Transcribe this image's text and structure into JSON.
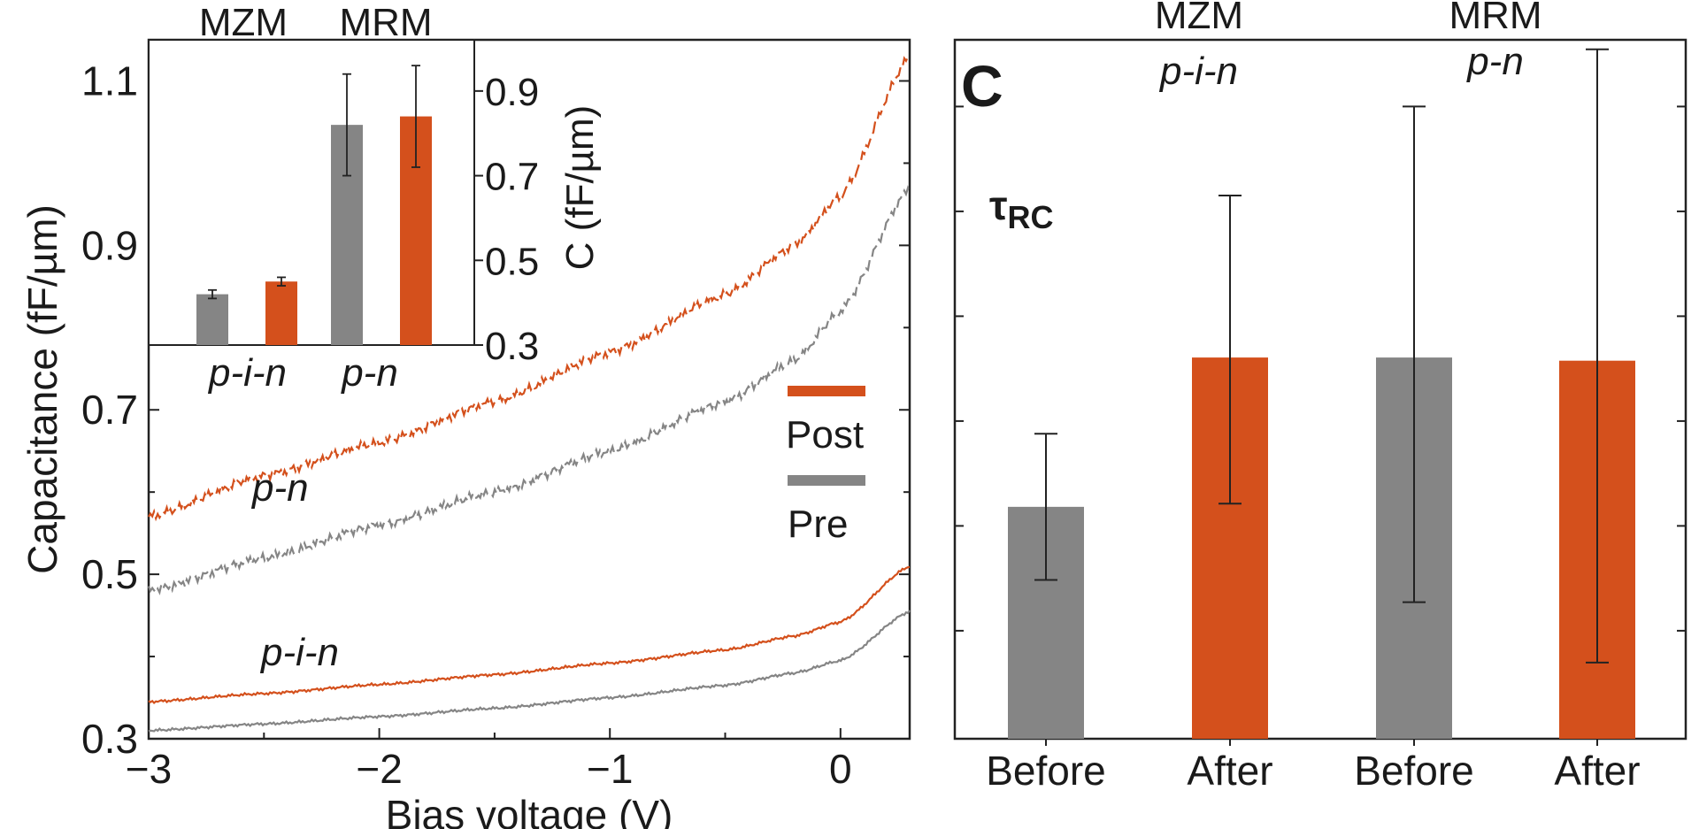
{
  "colors": {
    "post": "#d4501c",
    "pre": "#858585",
    "axis": "#222222",
    "text": "#1a1a1a"
  },
  "chart_data": [
    {
      "type": "line",
      "name": "capacitance-vs-bias",
      "xlabel": "Bias voltage (V)",
      "ylabel": "Capacitance (fF/µm)",
      "xlim": [
        -3,
        0.3
      ],
      "ylim": [
        0.3,
        1.15
      ],
      "xticks": [
        -3,
        -2,
        -1,
        0
      ],
      "xtick_labels": [
        "−3",
        "−2",
        "−1",
        "0"
      ],
      "yticks": [
        0.3,
        0.5,
        0.7,
        0.9,
        1.1
      ],
      "ytick_labels": [
        "0.3",
        "0.5",
        "0.7",
        "0.9",
        "1.1"
      ],
      "legend": {
        "position": "right-middle",
        "entries": [
          {
            "label": "Post",
            "color": "#d4501c"
          },
          {
            "label": "Pre",
            "color": "#858585"
          }
        ]
      },
      "annotations": {
        "pn": "p-n",
        "pin": "p-i-n"
      },
      "series": [
        {
          "name": "p-n Post",
          "style": "dashed",
          "color": "#d4501c",
          "x": [
            -3.0,
            -2.5,
            -2.0,
            -1.5,
            -1.0,
            -0.5,
            -0.2,
            0.0,
            0.3
          ],
          "y": [
            0.57,
            0.62,
            0.66,
            0.71,
            0.77,
            0.84,
            0.9,
            0.96,
            1.13
          ]
        },
        {
          "name": "p-n Pre",
          "style": "dashed",
          "color": "#858585",
          "x": [
            -3.0,
            -2.5,
            -2.0,
            -1.5,
            -1.0,
            -0.5,
            -0.2,
            0.0,
            0.3
          ],
          "y": [
            0.48,
            0.52,
            0.56,
            0.6,
            0.65,
            0.71,
            0.76,
            0.82,
            0.97
          ]
        },
        {
          "name": "p-i-n Post",
          "style": "solid",
          "color": "#d4501c",
          "x": [
            -3.0,
            -2.5,
            -2.0,
            -1.5,
            -1.0,
            -0.5,
            -0.2,
            0.0,
            0.3
          ],
          "y": [
            0.345,
            0.355,
            0.366,
            0.378,
            0.392,
            0.408,
            0.425,
            0.442,
            0.51
          ]
        },
        {
          "name": "p-i-n Pre",
          "style": "solid",
          "color": "#858585",
          "x": [
            -3.0,
            -2.5,
            -2.0,
            -1.5,
            -1.0,
            -0.5,
            -0.2,
            0.0,
            0.3
          ],
          "y": [
            0.31,
            0.318,
            0.327,
            0.337,
            0.35,
            0.365,
            0.38,
            0.395,
            0.455
          ]
        }
      ]
    },
    {
      "type": "bar",
      "name": "inset-capacitance",
      "ylabel": "C (fF/µm)",
      "ylim": [
        0.3,
        1.0
      ],
      "yticks": [
        0.3,
        0.5,
        0.7,
        0.9
      ],
      "ytick_labels": [
        "0.3",
        "0.5",
        "0.7",
        "0.9"
      ],
      "group_labels": [
        "p-i-n",
        "p-n"
      ],
      "group_titles": [
        "MZM",
        "MRM"
      ],
      "bars": [
        {
          "group": "p-i-n",
          "phase": "Pre",
          "value": 0.42,
          "err": 0.01,
          "color": "#858585"
        },
        {
          "group": "p-i-n",
          "phase": "Post",
          "value": 0.45,
          "err": 0.01,
          "color": "#d4501c"
        },
        {
          "group": "p-n",
          "phase": "Pre",
          "value": 0.82,
          "err": 0.12,
          "color": "#858585"
        },
        {
          "group": "p-n",
          "phase": "Post",
          "value": 0.84,
          "err": 0.12,
          "color": "#d4501c"
        }
      ]
    },
    {
      "type": "bar",
      "name": "tau-rc",
      "panel_label": "C",
      "annotation": "τ",
      "annotation_sub": "RC",
      "ylim": [
        0,
        11
      ],
      "categories": [
        "Before",
        "After",
        "Before",
        "After"
      ],
      "group_titles": [
        "MZM",
        "MRM"
      ],
      "group_subtitles": [
        "p-i-n",
        "p-n"
      ],
      "bars": [
        {
          "label": "Before",
          "value": 3.65,
          "err_low": 2.5,
          "err_high": 4.8,
          "color": "#858585"
        },
        {
          "label": "After",
          "value": 6.0,
          "err_low": 3.7,
          "err_high": 8.55,
          "color": "#d4501c"
        },
        {
          "label": "Before",
          "value": 6.0,
          "err_low": 2.15,
          "err_high": 9.95,
          "color": "#858585"
        },
        {
          "label": "After",
          "value": 5.95,
          "err_low": 1.2,
          "err_high": 10.85,
          "color": "#d4501c"
        }
      ]
    }
  ]
}
